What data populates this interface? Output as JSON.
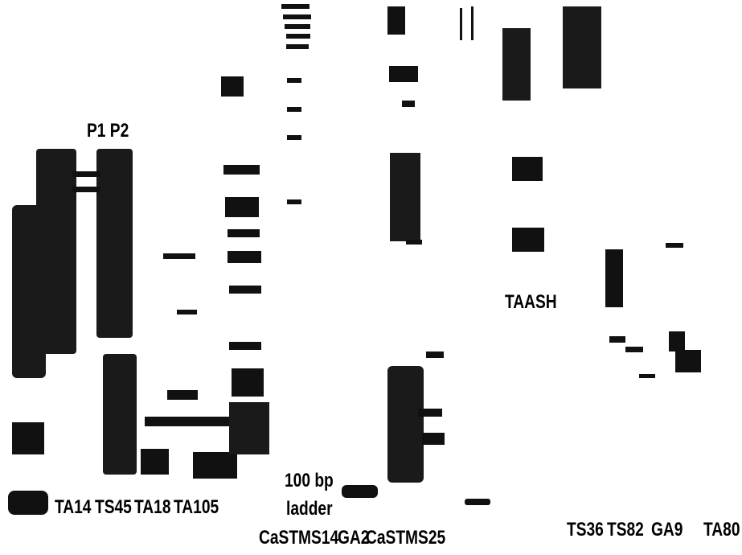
{
  "labels": {
    "parents": "P1 P2",
    "lane_ta14": "TA14",
    "lane_ts45": "TS45",
    "lane_ta18": "TA18",
    "lane_ta105": "TA105",
    "ladder_line1": "100 bp",
    "ladder_line2": "ladder",
    "lane_castms14": "CaSTMS14",
    "lane_ga2": "GA2",
    "lane_castms25": "CaSTMS25",
    "lane_taash": "TAASH",
    "lane_ts36": "TS36",
    "lane_ts82": "TS82",
    "lane_ga9": "GA9",
    "lane_ta80": "TA80"
  }
}
